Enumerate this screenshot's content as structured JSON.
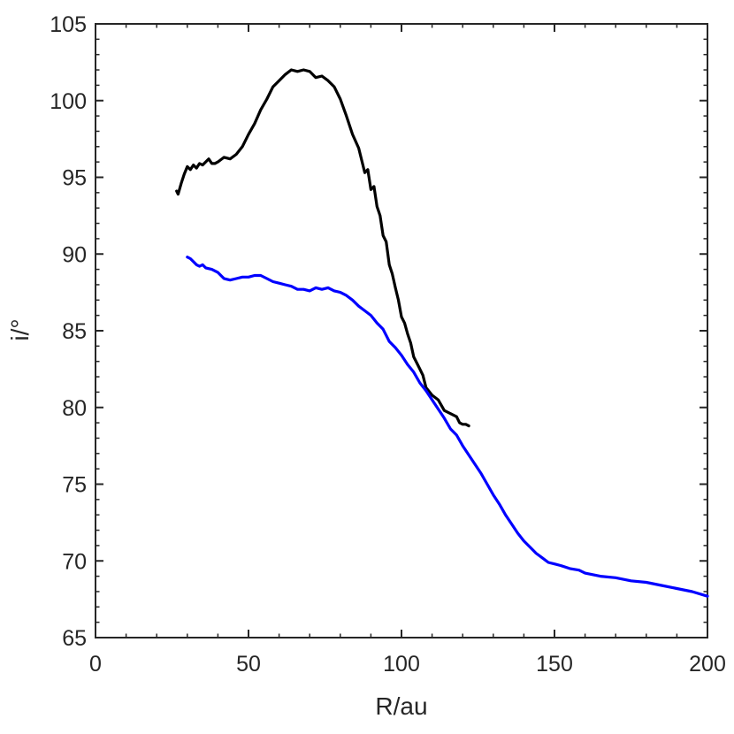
{
  "chart_data": {
    "type": "line",
    "title": "",
    "xlabel": "R/au",
    "ylabel": "i/°",
    "xlim": [
      0,
      200
    ],
    "ylim": [
      65,
      105
    ],
    "xticks": [
      0,
      50,
      100,
      150,
      200
    ],
    "yticks": [
      65,
      70,
      75,
      80,
      85,
      90,
      95,
      100,
      105
    ],
    "grid": false,
    "legend": "none",
    "series": [
      {
        "color": "#000000",
        "x": [
          26.5,
          27,
          28,
          29,
          30,
          31,
          32,
          33,
          34,
          35,
          36,
          37,
          38,
          39,
          40,
          42,
          44,
          46,
          48,
          50,
          52,
          54,
          56,
          58,
          60,
          62,
          64,
          66,
          68,
          70,
          72,
          74,
          76,
          78,
          80,
          82,
          84,
          86,
          88,
          89,
          90,
          91,
          92,
          93,
          94,
          95,
          96,
          97,
          98,
          99,
          100,
          101,
          102,
          103,
          104,
          105,
          106,
          107,
          108,
          110,
          112,
          114,
          116,
          118,
          119,
          120,
          121,
          122
        ],
        "y": [
          94.1,
          93.9,
          94.6,
          95.2,
          95.7,
          95.5,
          95.8,
          95.6,
          95.9,
          95.8,
          96.0,
          96.2,
          95.9,
          95.9,
          96.0,
          96.3,
          96.2,
          96.5,
          97.0,
          97.8,
          98.5,
          99.4,
          100.1,
          100.9,
          101.3,
          101.7,
          102.0,
          101.9,
          102.0,
          101.9,
          101.5,
          101.6,
          101.3,
          100.9,
          100.1,
          99.0,
          97.8,
          96.9,
          95.3,
          95.5,
          94.2,
          94.4,
          93.1,
          92.5,
          91.2,
          90.8,
          89.3,
          88.7,
          87.8,
          87.0,
          85.9,
          85.5,
          84.8,
          84.2,
          83.3,
          82.9,
          82.5,
          82.1,
          81.3,
          80.8,
          80.5,
          79.8,
          79.6,
          79.4,
          79.0,
          78.9,
          78.9,
          78.8
        ]
      },
      {
        "color": "#0000ff",
        "x": [
          30,
          31,
          32,
          33,
          34,
          35,
          36,
          38,
          40,
          42,
          44,
          46,
          48,
          50,
          52,
          54,
          56,
          58,
          60,
          62,
          64,
          66,
          68,
          70,
          72,
          74,
          76,
          78,
          80,
          82,
          84,
          86,
          88,
          90,
          92,
          94,
          96,
          98,
          100,
          102,
          104,
          106,
          108,
          110,
          112,
          114,
          116,
          118,
          120,
          122,
          124,
          126,
          128,
          130,
          132,
          134,
          136,
          138,
          140,
          142,
          144,
          146,
          148,
          150,
          152,
          155,
          158,
          160,
          165,
          170,
          175,
          180,
          185,
          190,
          195,
          200
        ],
        "y": [
          89.8,
          89.7,
          89.5,
          89.3,
          89.2,
          89.3,
          89.1,
          89.0,
          88.8,
          88.4,
          88.3,
          88.4,
          88.5,
          88.5,
          88.6,
          88.6,
          88.4,
          88.2,
          88.1,
          88.0,
          87.9,
          87.7,
          87.7,
          87.6,
          87.8,
          87.7,
          87.8,
          87.6,
          87.5,
          87.3,
          87.0,
          86.6,
          86.3,
          86.0,
          85.5,
          85.1,
          84.3,
          83.9,
          83.4,
          82.8,
          82.3,
          81.6,
          81.1,
          80.5,
          79.9,
          79.3,
          78.6,
          78.2,
          77.5,
          76.9,
          76.3,
          75.7,
          75.0,
          74.3,
          73.7,
          73.0,
          72.4,
          71.8,
          71.3,
          70.9,
          70.5,
          70.2,
          69.9,
          69.8,
          69.7,
          69.5,
          69.4,
          69.2,
          69.0,
          68.9,
          68.7,
          68.6,
          68.4,
          68.2,
          68.0,
          67.7
        ]
      }
    ]
  }
}
